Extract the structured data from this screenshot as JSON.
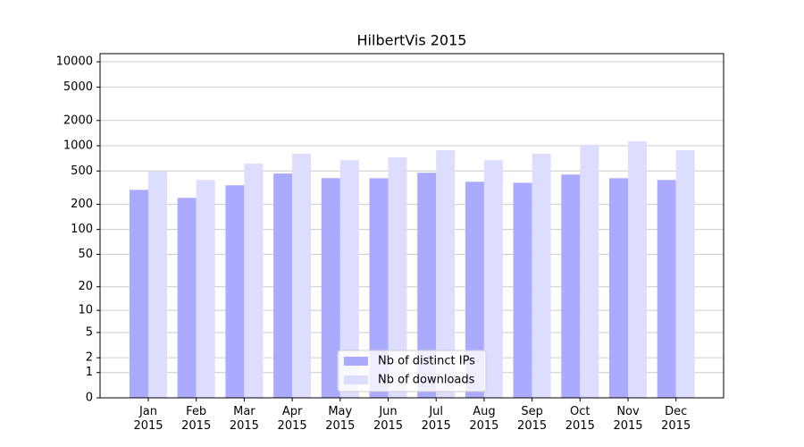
{
  "chart_data": {
    "type": "bar",
    "title": "HilbertVis 2015",
    "categories": [
      "Jan 2015",
      "Feb 2015",
      "Mar 2015",
      "Apr 2015",
      "May 2015",
      "Jun 2015",
      "Jul 2015",
      "Aug 2015",
      "Sep 2015",
      "Oct 2015",
      "Nov 2015",
      "Dec 2015"
    ],
    "series": [
      {
        "name": "Nb of distinct IPs",
        "color": "#aaaaff",
        "values": [
          298,
          239,
          338,
          466,
          411,
          410,
          477,
          372,
          362,
          454,
          410,
          391
        ]
      },
      {
        "name": "Nb of downloads",
        "color": "#ddddff",
        "values": [
          489,
          391,
          611,
          803,
          675,
          727,
          885,
          675,
          803,
          1030,
          1130,
          885
        ]
      }
    ],
    "ylim": [
      0,
      12500
    ],
    "yticks": [
      0,
      1,
      2,
      5,
      10,
      20,
      50,
      100,
      200,
      500,
      1000,
      2000,
      5000,
      10000
    ],
    "log_scale": true,
    "grid": true,
    "legend": "lower center"
  }
}
